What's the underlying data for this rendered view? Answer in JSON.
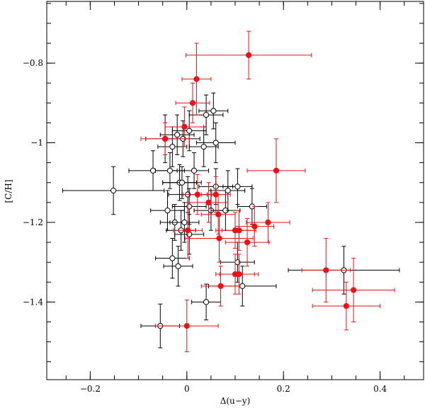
{
  "chart_data": {
    "type": "scatter",
    "title": "",
    "xlabel": "Δ(u−y)",
    "ylabel": "[C/H]",
    "xlim": [
      -0.29,
      0.49
    ],
    "ylim": [
      -1.595,
      -0.645
    ],
    "x_ticks": [
      -0.2,
      0,
      0.2,
      0.4
    ],
    "x_tick_labels": [
      "−0.2",
      "0",
      "0.2",
      "0.4"
    ],
    "x_minor_step": 0.05,
    "y_ticks": [
      -1.4,
      -1.2,
      -1.0,
      -0.8
    ],
    "y_tick_labels": [
      "−1.4",
      "−1.2",
      "−1",
      "−0.8"
    ],
    "y_minor_step": 0.05,
    "grid": false,
    "legend": "none",
    "series": [
      {
        "marker": "open-circle",
        "color": "#000000",
        "points": [
          {
            "x": -0.152,
            "y": -1.12,
            "xerr": 0.105,
            "yerr": 0.06
          },
          {
            "x": -0.07,
            "y": -1.07,
            "xerr": 0.05,
            "yerr": 0.05
          },
          {
            "x": -0.055,
            "y": -1.46,
            "xerr": 0.04,
            "yerr": 0.055
          },
          {
            "x": -0.045,
            "y": -0.99,
            "xerr": 0.04,
            "yerr": 0.06
          },
          {
            "x": -0.04,
            "y": -1.17,
            "xerr": 0.035,
            "yerr": 0.05
          },
          {
            "x": -0.035,
            "y": -1.07,
            "xerr": 0.03,
            "yerr": 0.045
          },
          {
            "x": -0.03,
            "y": -1.29,
            "xerr": 0.035,
            "yerr": 0.05
          },
          {
            "x": -0.025,
            "y": -1.2,
            "xerr": 0.03,
            "yerr": 0.045
          },
          {
            "x": -0.03,
            "y": -1.01,
            "xerr": 0.03,
            "yerr": 0.05
          },
          {
            "x": -0.02,
            "y": -0.98,
            "xerr": 0.035,
            "yerr": 0.05
          },
          {
            "x": -0.015,
            "y": -1.1,
            "xerr": 0.035,
            "yerr": 0.045
          },
          {
            "x": -0.018,
            "y": -1.31,
            "xerr": 0.03,
            "yerr": 0.05
          },
          {
            "x": -0.012,
            "y": -1.22,
            "xerr": 0.03,
            "yerr": 0.05
          },
          {
            "x": -0.01,
            "y": -1.1,
            "xerr": 0.04,
            "yerr": 0.04
          },
          {
            "x": -0.008,
            "y": -0.99,
            "xerr": 0.035,
            "yerr": 0.045
          },
          {
            "x": -0.005,
            "y": -1.2,
            "xerr": 0.03,
            "yerr": 0.05
          },
          {
            "x": 0.002,
            "y": -1.13,
            "xerr": 0.04,
            "yerr": 0.045
          },
          {
            "x": 0.005,
            "y": -0.97,
            "xerr": 0.035,
            "yerr": 0.05
          },
          {
            "x": 0.005,
            "y": -1.23,
            "xerr": 0.03,
            "yerr": 0.05
          },
          {
            "x": 0.005,
            "y": -1.16,
            "xerr": 0.035,
            "yerr": 0.045
          },
          {
            "x": 0.015,
            "y": -1.07,
            "xerr": 0.03,
            "yerr": 0.045
          },
          {
            "x": 0.035,
            "y": -1.01,
            "xerr": 0.03,
            "yerr": 0.05
          },
          {
            "x": 0.04,
            "y": -0.93,
            "xerr": 0.035,
            "yerr": 0.05
          },
          {
            "x": 0.04,
            "y": -1.4,
            "xerr": 0.03,
            "yerr": 0.045
          },
          {
            "x": 0.05,
            "y": -1.17,
            "xerr": 0.035,
            "yerr": 0.05
          },
          {
            "x": 0.055,
            "y": -0.92,
            "xerr": 0.03,
            "yerr": 0.045
          },
          {
            "x": 0.06,
            "y": -1.0,
            "xerr": 0.04,
            "yerr": 0.05
          },
          {
            "x": 0.06,
            "y": -1.11,
            "xerr": 0.035,
            "yerr": 0.045
          },
          {
            "x": 0.08,
            "y": -1.17,
            "xerr": 0.03,
            "yerr": 0.05
          },
          {
            "x": 0.085,
            "y": -1.12,
            "xerr": 0.035,
            "yerr": 0.05
          },
          {
            "x": 0.105,
            "y": -1.11,
            "xerr": 0.03,
            "yerr": 0.045
          },
          {
            "x": 0.105,
            "y": -1.3,
            "xerr": 0.035,
            "yerr": 0.05
          },
          {
            "x": 0.115,
            "y": -1.36,
            "xerr": 0.07,
            "yerr": 0.05
          },
          {
            "x": 0.135,
            "y": -1.16,
            "xerr": 0.03,
            "yerr": 0.045
          },
          {
            "x": 0.325,
            "y": -1.32,
            "xerr": 0.115,
            "yerr": 0.06
          }
        ]
      },
      {
        "marker": "filled-circle",
        "color": "#ee1111",
        "points": [
          {
            "x": 0.128,
            "y": -0.78,
            "xerr": 0.13,
            "yerr": 0.06
          },
          {
            "x": 0.02,
            "y": -0.84,
            "xerr": 0.03,
            "yerr": 0.09
          },
          {
            "x": 0.012,
            "y": -0.9,
            "xerr": 0.035,
            "yerr": 0.05
          },
          {
            "x": -0.005,
            "y": -0.96,
            "xerr": 0.04,
            "yerr": 0.05
          },
          {
            "x": -0.045,
            "y": -0.99,
            "xerr": 0.05,
            "yerr": 0.04
          },
          {
            "x": 0.185,
            "y": -1.07,
            "xerr": 0.06,
            "yerr": 0.08
          },
          {
            "x": 0.022,
            "y": -1.13,
            "xerr": 0.03,
            "yerr": 0.05
          },
          {
            "x": 0.045,
            "y": -1.15,
            "xerr": 0.04,
            "yerr": 0.05
          },
          {
            "x": 0.06,
            "y": -1.13,
            "xerr": 0.03,
            "yerr": 0.045
          },
          {
            "x": 0.065,
            "y": -1.18,
            "xerr": 0.035,
            "yerr": 0.05
          },
          {
            "x": 0.002,
            "y": -1.22,
            "xerr": 0.03,
            "yerr": 0.07
          },
          {
            "x": 0.067,
            "y": -1.24,
            "xerr": 0.07,
            "yerr": 0.06
          },
          {
            "x": 0.1,
            "y": -1.22,
            "xerr": 0.04,
            "yerr": 0.045
          },
          {
            "x": 0.108,
            "y": -1.22,
            "xerr": 0.035,
            "yerr": 0.05
          },
          {
            "x": 0.14,
            "y": -1.21,
            "xerr": 0.04,
            "yerr": 0.05
          },
          {
            "x": 0.168,
            "y": -1.2,
            "xerr": 0.045,
            "yerr": 0.05
          },
          {
            "x": 0.125,
            "y": -1.25,
            "xerr": 0.045,
            "yerr": 0.06
          },
          {
            "x": 0.1,
            "y": -1.33,
            "xerr": 0.04,
            "yerr": 0.05
          },
          {
            "x": 0.108,
            "y": -1.33,
            "xerr": 0.04,
            "yerr": 0.05
          },
          {
            "x": 0.07,
            "y": -1.36,
            "xerr": 0.04,
            "yerr": 0.05
          },
          {
            "x": 0.288,
            "y": -1.32,
            "xerr": 0.05,
            "yerr": 0.08
          },
          {
            "x": 0.345,
            "y": -1.37,
            "xerr": 0.085,
            "yerr": 0.08
          },
          {
            "x": 0.33,
            "y": -1.41,
            "xerr": 0.07,
            "yerr": 0.06
          },
          {
            "x": 0.0,
            "y": -1.46,
            "xerr": 0.065,
            "yerr": 0.065
          }
        ]
      }
    ]
  }
}
